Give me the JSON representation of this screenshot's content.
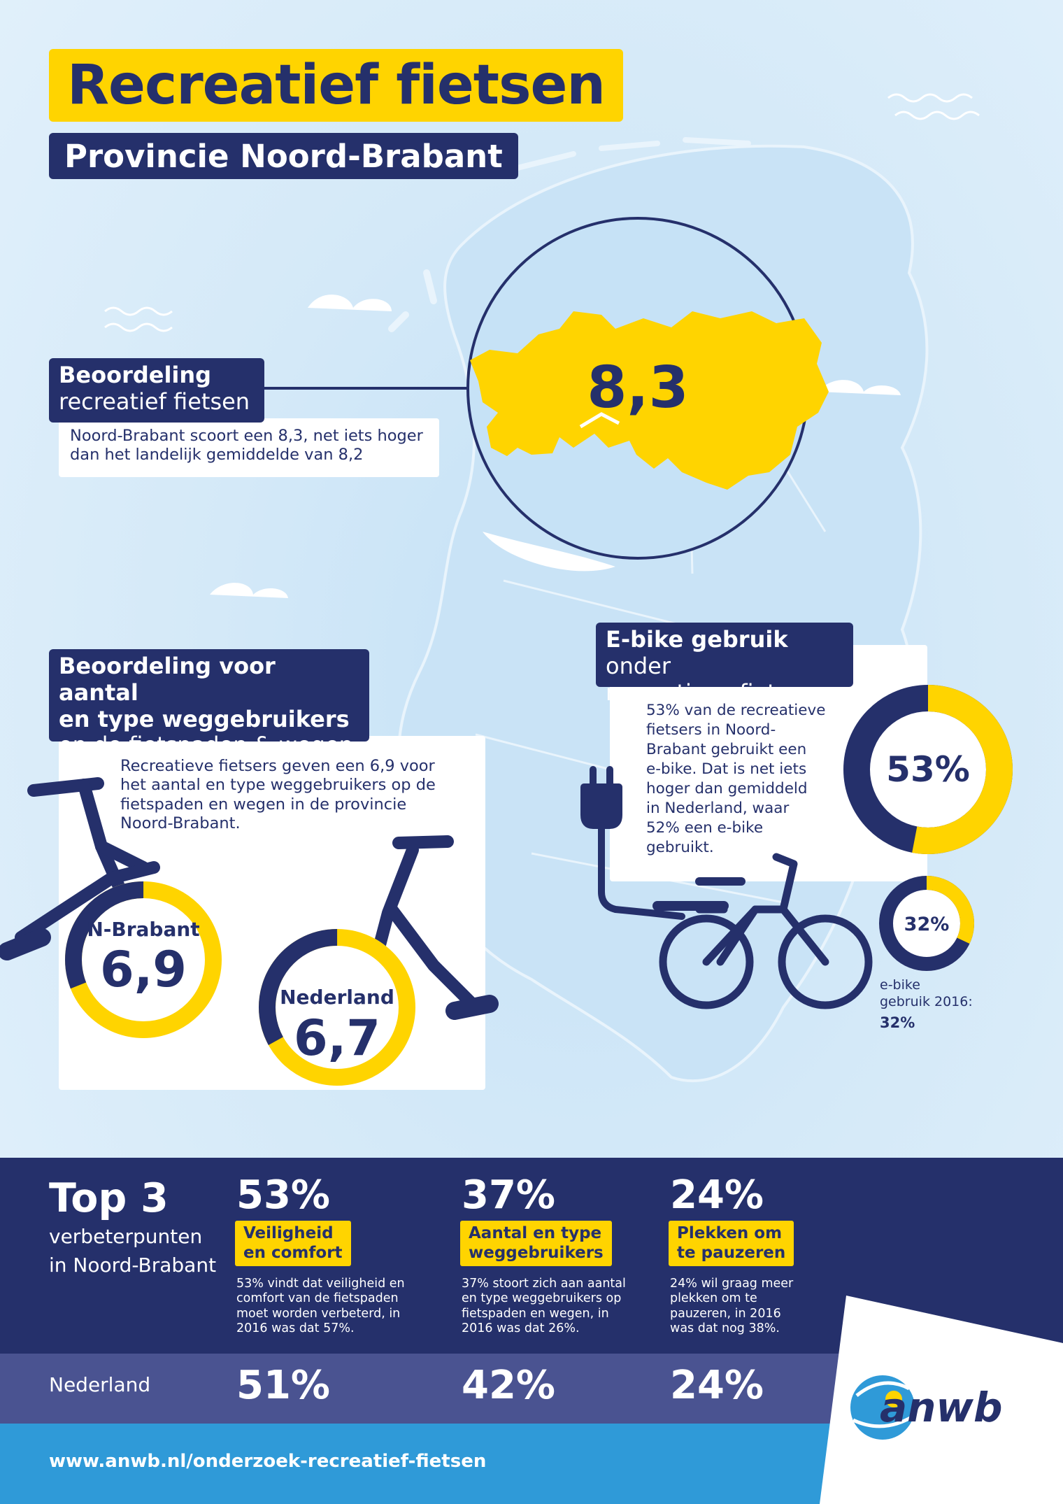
{
  "header": {
    "title": "Recreatief fietsen",
    "subtitle": "Provincie Noord-Brabant"
  },
  "rating": {
    "label_bold": "Beoordeling",
    "label_light": "recreatief fietsen",
    "text_line1": "Noord-Brabant scoort een 8,3, net iets hoger",
    "text_line2": "dan het landelijk gemiddelde van 8,2",
    "score": "8,3"
  },
  "road_users": {
    "label_line1": "Beoordeling voor aantal",
    "label_line2": "en type weggebruikers",
    "label_line3": "op de fietspaden & wegen",
    "text_lines": [
      "Recreatieve fietsers geven een 6,9 voor",
      "het aantal en type weggebruikers op de",
      "fietspaden en wegen in de provincie",
      "Noord-Brabant."
    ],
    "brabant_label": "N-Brabant",
    "brabant_score": "6,9",
    "brabant_value": 6.9,
    "nederland_label": "Nederland",
    "nederland_score": "6,7",
    "nederland_value": 6.7
  },
  "ebike": {
    "label_bold": "E-bike gebruik",
    "label_light": " onder",
    "label_line2": "recreatieve fietsers",
    "text_lines": [
      "53% van de recreatieve",
      "fietsers in Noord-",
      "Brabant gebruikt een",
      "e-bike. Dat is net iets",
      "hoger dan gemiddeld",
      "in Nederland, waar",
      "52% een e-bike",
      "gebruikt."
    ],
    "big_pct_label": "53%",
    "big_pct_value": 53,
    "small_pct_label": "32%",
    "small_pct_value": 32,
    "caption_line1": "e-bike",
    "caption_line2": "gebruik 2016:",
    "caption_value": "32%"
  },
  "top3": {
    "title": "Top 3",
    "sub_line1": "verbeterpunten",
    "sub_line2": "in Noord-Brabant",
    "items": [
      {
        "pct": "53%",
        "tag_line1": "Veiligheid",
        "tag_line2": "en comfort",
        "desc_lines": [
          "53% vindt dat veiligheid en",
          "comfort van de fietspaden",
          "moet worden verbeterd, in",
          "2016 was dat 57%."
        ],
        "nl_pct": "51%"
      },
      {
        "pct": "37%",
        "tag_line1": "Aantal en type",
        "tag_line2": "weggebruikers",
        "desc_lines": [
          "37% stoort zich aan aantal",
          "en type weggebruikers op",
          "fietspaden en wegen, in",
          "2016 was dat 26%."
        ],
        "nl_pct": "42%"
      },
      {
        "pct": "24%",
        "tag_line1": "Plekken om",
        "tag_line2": "te pauzeren",
        "desc_lines": [
          "24% wil graag meer",
          "plekken om te",
          "pauzeren, in 2016",
          "was dat nog 38%."
        ],
        "nl_pct": "24%"
      }
    ],
    "nl_label": "Nederland"
  },
  "footer": {
    "url": "www.anwb.nl/onderzoek-recreatief-fietsen",
    "logo_text": "anwb"
  },
  "colors": {
    "navy": "#25306b",
    "yellow": "#ffd400",
    "light_blue": "#2f9ad8",
    "background": "#d6eaf8"
  }
}
